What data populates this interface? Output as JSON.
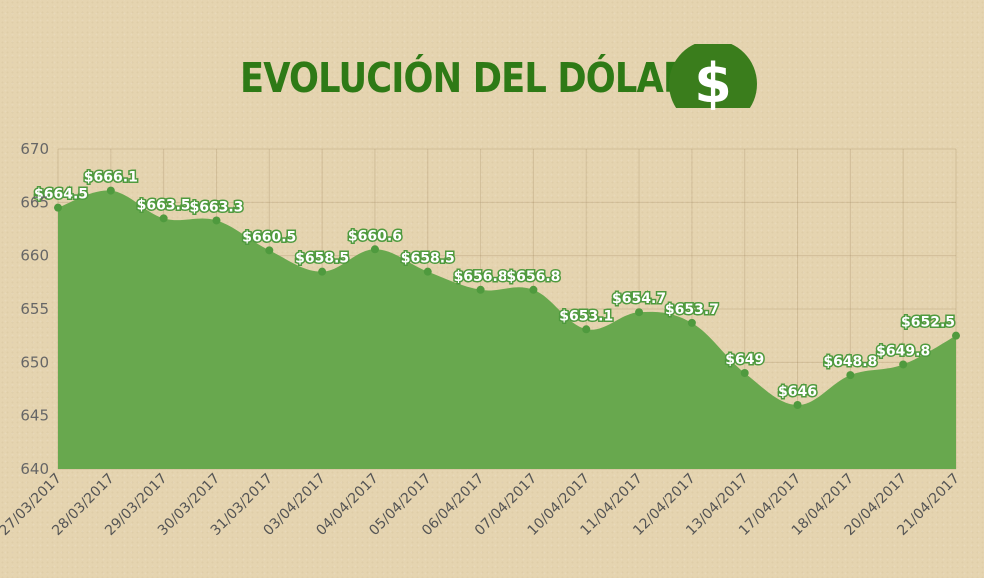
{
  "header": {
    "title": "EVOLUCIÓN DEL DÓLAR",
    "icon": "dollar-icon",
    "icon_symbol": "$"
  },
  "colors": {
    "area_fill": "#68a84e",
    "marker": "#4f9a3e",
    "title": "#2e7a16",
    "icon_bg": "#3a7d1c",
    "background": "#e5d4b0"
  },
  "chart_data": {
    "type": "area",
    "title": "EVOLUCIÓN DEL DÓLAR",
    "xlabel": "",
    "ylabel": "",
    "categories": [
      "27/03/2017",
      "28/03/2017",
      "29/03/2017",
      "30/03/2017",
      "31/03/2017",
      "03/04/2017",
      "04/04/2017",
      "05/04/2017",
      "06/04/2017",
      "07/04/2017",
      "10/04/2017",
      "11/04/2017",
      "12/04/2017",
      "13/04/2017",
      "17/04/2017",
      "18/04/2017",
      "20/04/2017",
      "21/04/2017"
    ],
    "values": [
      664.5,
      666.1,
      663.5,
      663.3,
      660.5,
      658.5,
      660.6,
      658.5,
      656.8,
      656.8,
      653.1,
      654.7,
      653.7,
      649,
      646,
      648.8,
      649.8,
      652.5
    ],
    "data_labels": [
      "$664.5",
      "$666.1",
      "$663.5",
      "$663.3",
      "$660.5",
      "$658.5",
      "$660.6",
      "$658.5",
      "$656.8",
      "$656.8",
      "$653.1",
      "$654.7",
      "$653.7",
      "$649",
      "$646",
      "$648.8",
      "$649.8",
      "$652.5"
    ],
    "ylim": [
      640,
      670
    ],
    "yticks": [
      640,
      645,
      650,
      655,
      660,
      665,
      670
    ],
    "grid": true,
    "legend": "none"
  }
}
